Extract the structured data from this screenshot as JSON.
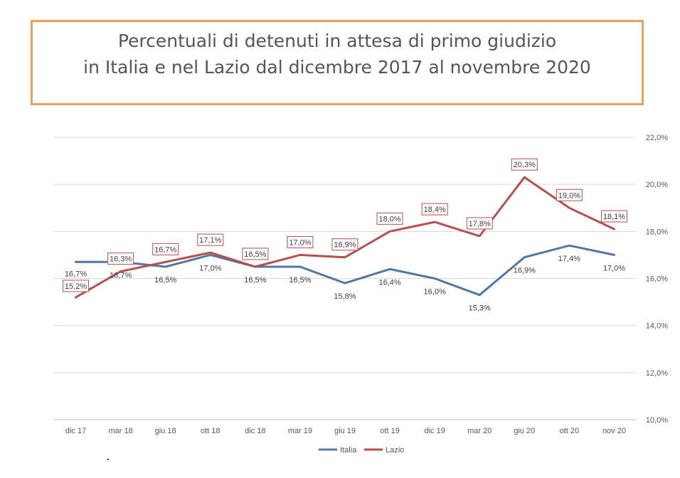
{
  "title": {
    "line1": "Percentuali di detenuti in attesa di primo giudizio",
    "line2": "in Italia e nel Lazio dal dicembre 2017 al novembre 2020"
  },
  "chart_data": {
    "type": "line",
    "categories": [
      "dic 17",
      "mar 18",
      "giu 18",
      "ott 18",
      "dic 18",
      "mar 19",
      "giu 19",
      "ott 19",
      "dic 19",
      "mar 20",
      "giu 20",
      "ott 20",
      "nov 20"
    ],
    "series": [
      {
        "name": "Italia",
        "color": "#4f78a8",
        "values": [
          16.7,
          16.7,
          16.5,
          17.0,
          16.5,
          16.5,
          15.8,
          16.4,
          16.0,
          15.3,
          16.9,
          17.4,
          17.0
        ],
        "labels": [
          "16,7%",
          "16,7%",
          "16,5%",
          "17,0%",
          "16,5%",
          "16,5%",
          "15,8%",
          "16,4%",
          "16,0%",
          "15,3%",
          "16,9%",
          "17,4%",
          "17,0%"
        ]
      },
      {
        "name": "Lazio",
        "color": "#b94e4b",
        "values": [
          15.2,
          16.3,
          16.7,
          17.1,
          16.5,
          17.0,
          16.9,
          18.0,
          18.4,
          17.8,
          20.3,
          19.0,
          18.1
        ],
        "labels": [
          "15,2%",
          "16,3%",
          "16,7%",
          "17,1%",
          "16,5%",
          "17,0%",
          "16,9%",
          "18,0%",
          "18,4%",
          "17,8%",
          "20,3%",
          "19,0%",
          "18,1%"
        ]
      }
    ],
    "yaxis_position": "right",
    "ylim": [
      10,
      22
    ],
    "yticks": [
      10,
      12,
      14,
      16,
      18,
      20,
      22
    ],
    "ytick_labels": [
      "10,0%",
      "12,0%",
      "14,0%",
      "16,0%",
      "18,0%",
      "20,0%",
      "22,0%"
    ],
    "grid": true,
    "legend_position": "bottom",
    "xlabel": "",
    "ylabel": ""
  }
}
